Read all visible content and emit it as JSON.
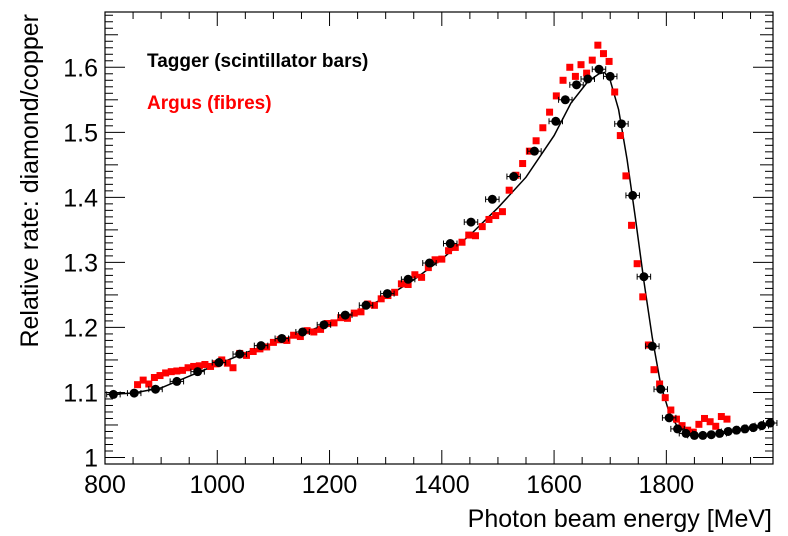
{
  "chart_data": {
    "type": "scatter",
    "title": "",
    "xlabel": "Photon beam energy [MeV]",
    "ylabel": "Relative rate: diamond/copper",
    "xlim": [
      800,
      1990
    ],
    "ylim": [
      0.99,
      1.685
    ],
    "x_ticks": [
      800,
      1000,
      1200,
      1400,
      1600,
      1800
    ],
    "x_tick_labels": [
      "800",
      "1000",
      "1200",
      "1400",
      "1600",
      "1800"
    ],
    "y_ticks": [
      1.0,
      1.1,
      1.2,
      1.3,
      1.4,
      1.5,
      1.6
    ],
    "y_tick_labels": [
      "1",
      "1.1",
      "1.2",
      "1.3",
      "1.4",
      "1.5",
      "1.6"
    ],
    "grid": false,
    "legend_position": "top-left",
    "series": [
      {
        "name": "Tagger (scintillator bars)",
        "color": "#000000",
        "marker": "circle",
        "x_error": 12,
        "x": [
          815,
          852,
          890,
          928,
          965,
          1003,
          1040,
          1078,
          1115,
          1152,
          1190,
          1228,
          1265,
          1303,
          1340,
          1378,
          1415,
          1452,
          1490,
          1528,
          1565,
          1603,
          1620,
          1640,
          1660,
          1680,
          1700,
          1720,
          1740,
          1760,
          1775,
          1790,
          1805,
          1820,
          1835,
          1850,
          1865,
          1880,
          1895,
          1910,
          1925,
          1940,
          1955,
          1970,
          1985
        ],
        "y": [
          1.097,
          1.099,
          1.105,
          1.117,
          1.132,
          1.146,
          1.159,
          1.172,
          1.183,
          1.193,
          1.204,
          1.219,
          1.234,
          1.252,
          1.274,
          1.299,
          1.329,
          1.362,
          1.397,
          1.432,
          1.471,
          1.517,
          1.55,
          1.573,
          1.582,
          1.597,
          1.586,
          1.513,
          1.403,
          1.278,
          1.171,
          1.105,
          1.061,
          1.044,
          1.037,
          1.034,
          1.034,
          1.035,
          1.037,
          1.04,
          1.042,
          1.044,
          1.046,
          1.049,
          1.053
        ]
      },
      {
        "name": "Argus (fibres)",
        "color": "#ff0000",
        "marker": "square",
        "x": [
          858,
          868,
          878,
          888,
          898,
          908,
          918,
          928,
          938,
          948,
          958,
          968,
          978,
          988,
          998,
          1008,
          1018,
          1028,
          1040,
          1052,
          1064,
          1076,
          1088,
          1100,
          1112,
          1124,
          1136,
          1148,
          1160,
          1172,
          1184,
          1196,
          1208,
          1220,
          1232,
          1244,
          1256,
          1268,
          1280,
          1292,
          1304,
          1316,
          1328,
          1340,
          1352,
          1364,
          1376,
          1388,
          1400,
          1412,
          1424,
          1436,
          1448,
          1460,
          1472,
          1484,
          1496,
          1508,
          1520,
          1532,
          1544,
          1556,
          1568,
          1580,
          1592,
          1604,
          1616,
          1628,
          1638,
          1648,
          1658,
          1668,
          1678,
          1688,
          1698,
          1708,
          1718,
          1728,
          1738,
          1748,
          1758,
          1768,
          1778,
          1788,
          1798,
          1808,
          1818,
          1828,
          1838,
          1848,
          1858,
          1868,
          1878,
          1888,
          1898,
          1908
        ],
        "y": [
          1.112,
          1.119,
          1.113,
          1.123,
          1.126,
          1.13,
          1.132,
          1.133,
          1.134,
          1.138,
          1.14,
          1.141,
          1.143,
          1.14,
          1.144,
          1.15,
          1.145,
          1.138,
          1.16,
          1.157,
          1.163,
          1.167,
          1.17,
          1.177,
          1.181,
          1.18,
          1.188,
          1.186,
          1.195,
          1.193,
          1.197,
          1.206,
          1.207,
          1.215,
          1.214,
          1.222,
          1.224,
          1.236,
          1.234,
          1.244,
          1.249,
          1.254,
          1.267,
          1.266,
          1.281,
          1.277,
          1.292,
          1.304,
          1.305,
          1.318,
          1.323,
          1.331,
          1.342,
          1.341,
          1.355,
          1.366,
          1.372,
          1.378,
          1.411,
          1.434,
          1.452,
          1.471,
          1.487,
          1.507,
          1.531,
          1.556,
          1.58,
          1.6,
          1.586,
          1.604,
          1.591,
          1.611,
          1.634,
          1.621,
          1.609,
          1.562,
          1.495,
          1.433,
          1.357,
          1.298,
          1.247,
          1.173,
          1.135,
          1.113,
          1.092,
          1.073,
          1.059,
          1.049,
          1.042,
          1.039,
          1.051,
          1.06,
          1.055,
          1.048,
          1.063,
          1.059
        ]
      }
    ],
    "fit_curve": {
      "color": "#000000",
      "x": [
        805,
        850,
        900,
        950,
        1000,
        1050,
        1100,
        1150,
        1200,
        1250,
        1300,
        1350,
        1400,
        1450,
        1500,
        1550,
        1600,
        1630,
        1660,
        1680,
        1690,
        1700,
        1715,
        1730,
        1745,
        1760,
        1775,
        1790,
        1805,
        1820,
        1840,
        1860,
        1880,
        1900,
        1930,
        1960,
        1990
      ],
      "y": [
        1.097,
        1.099,
        1.107,
        1.125,
        1.143,
        1.161,
        1.176,
        1.191,
        1.206,
        1.225,
        1.246,
        1.273,
        1.305,
        1.342,
        1.384,
        1.431,
        1.495,
        1.545,
        1.578,
        1.59,
        1.592,
        1.58,
        1.535,
        1.458,
        1.367,
        1.271,
        1.184,
        1.112,
        1.069,
        1.047,
        1.037,
        1.034,
        1.035,
        1.037,
        1.041,
        1.046,
        1.054
      ]
    }
  }
}
